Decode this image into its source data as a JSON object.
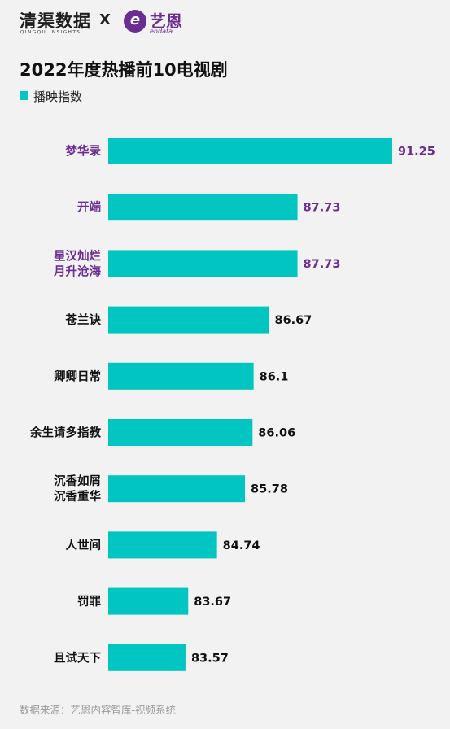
{
  "header": {
    "brand1_name": "清渠数据",
    "brand1_sub": "QINGQU INSIGHTS",
    "cross": "X",
    "brand2_name": "艺恩",
    "brand2_sub": "endata",
    "brand2_mark": "e"
  },
  "colors": {
    "bar": "#00c5c0",
    "highlight_text": "#6a2d91",
    "normal_text": "#111111"
  },
  "footer": {
    "source": "数据来源：艺恩内容智库-视频系统"
  },
  "chart_data": {
    "type": "bar",
    "orientation": "horizontal",
    "title": "2022年度热播前10电视剧",
    "legend": {
      "position": "top-left",
      "entries": [
        "播映指数"
      ]
    },
    "categories": [
      "梦华录",
      "开端",
      "星汉灿烂\n月升沧海",
      "苍兰诀",
      "卿卿日常",
      "余生请多指教",
      "沉香如屑\n沉香重华",
      "人世间",
      "罚罪",
      "且试天下"
    ],
    "series": [
      {
        "name": "播映指数",
        "values": [
          91.25,
          87.73,
          87.73,
          86.67,
          86.1,
          86.06,
          85.78,
          84.74,
          83.67,
          83.57
        ]
      }
    ],
    "value_labels": [
      "91.25",
      "87.73",
      "87.73",
      "86.67",
      "86.1",
      "86.06",
      "85.78",
      "84.74",
      "83.67",
      "83.57"
    ],
    "highlighted": [
      true,
      true,
      true,
      false,
      false,
      false,
      false,
      false,
      false,
      false
    ],
    "xlim": [
      80.7,
      91.25
    ],
    "axes_visible": false,
    "grid": false
  }
}
